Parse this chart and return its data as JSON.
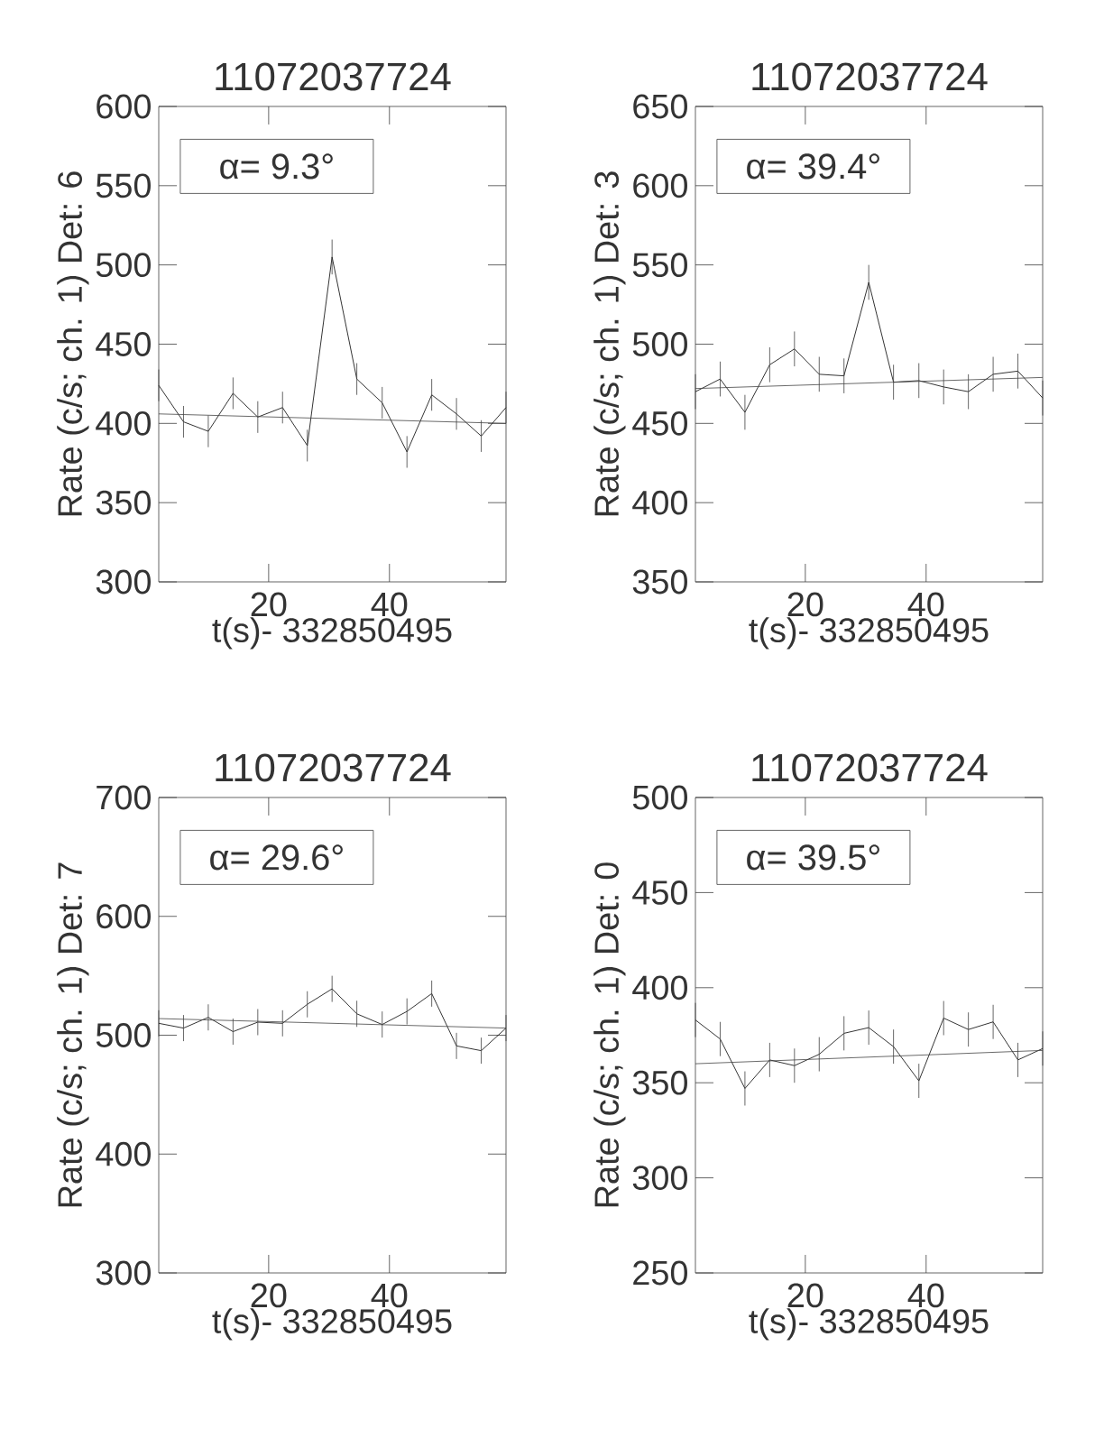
{
  "chart_data": [
    {
      "type": "line",
      "title": "11072037724",
      "xlabel": "t(s)- 332850495",
      "ylabel": "Rate (c/s; ch. 1) Det: 6",
      "annotations": [
        "α= 9.3°"
      ],
      "xlim": [
        1.8,
        59.3
      ],
      "ylim": [
        300,
        600
      ],
      "xticks": [
        20,
        40
      ],
      "yticks": [
        300,
        350,
        400,
        450,
        500,
        550,
        600
      ],
      "series": [
        {
          "color": "#000000",
          "x": [
            1.8,
            5.9,
            10.0,
            14.1,
            18.2,
            22.3,
            26.4,
            30.5,
            34.6,
            38.8,
            42.9,
            47.0,
            51.1,
            55.2,
            59.3
          ],
          "values": [
            424,
            401,
            395,
            419,
            404,
            410,
            386,
            505,
            428,
            413,
            382,
            418,
            406,
            392,
            410
          ],
          "errors": [
            10,
            10,
            10,
            10,
            10,
            10,
            10,
            11,
            10,
            10,
            10,
            10,
            10,
            10,
            10
          ]
        },
        {
          "type": "line",
          "color": "#444444",
          "x": [
            1.8,
            59.3
          ],
          "values": [
            406,
            400
          ]
        }
      ]
    },
    {
      "type": "line",
      "title": "11072037724",
      "xlabel": "t(s)- 332850495",
      "ylabel": "Rate (c/s; ch. 1) Det: 3",
      "annotations": [
        "α= 39.4°"
      ],
      "xlim": [
        1.8,
        59.3
      ],
      "ylim": [
        350,
        650
      ],
      "xticks": [
        20,
        40
      ],
      "yticks": [
        350,
        400,
        450,
        500,
        550,
        600,
        650
      ],
      "series": [
        {
          "color": "#000000",
          "x": [
            1.8,
            5.9,
            10.0,
            14.1,
            18.2,
            22.3,
            26.4,
            30.5,
            34.6,
            38.8,
            42.9,
            47.0,
            51.1,
            55.2,
            59.3
          ],
          "values": [
            470,
            478,
            457,
            487,
            497,
            481,
            480,
            539,
            476,
            477,
            473,
            470,
            481,
            483,
            466
          ],
          "errors": [
            11,
            11,
            11,
            11,
            11,
            11,
            11,
            11,
            11,
            11,
            11,
            11,
            11,
            11,
            11
          ]
        },
        {
          "type": "line",
          "color": "#444444",
          "x": [
            1.8,
            59.3
          ],
          "values": [
            472,
            479
          ]
        }
      ]
    },
    {
      "type": "line",
      "title": "11072037724",
      "xlabel": "t(s)- 332850495",
      "ylabel": "Rate (c/s; ch. 1) Det: 7",
      "annotations": [
        "α= 29.6°"
      ],
      "xlim": [
        1.8,
        59.3
      ],
      "ylim": [
        300,
        700
      ],
      "xticks": [
        20,
        40
      ],
      "yticks": [
        300,
        400,
        500,
        600,
        700
      ],
      "series": [
        {
          "color": "#000000",
          "x": [
            1.8,
            5.9,
            10.0,
            14.1,
            18.2,
            22.3,
            26.4,
            30.5,
            34.6,
            38.8,
            42.9,
            47.0,
            51.1,
            55.2,
            59.3
          ],
          "values": [
            510,
            506,
            515,
            503,
            511,
            510,
            526,
            539,
            518,
            509,
            520,
            535,
            491,
            487,
            506
          ],
          "errors": [
            11,
            11,
            11,
            11,
            11,
            11,
            11,
            11,
            11,
            11,
            11,
            11,
            11,
            11,
            11
          ]
        },
        {
          "type": "line",
          "color": "#444444",
          "x": [
            1.8,
            59.3
          ],
          "values": [
            514,
            506
          ]
        }
      ]
    },
    {
      "type": "line",
      "title": "11072037724",
      "xlabel": "t(s)- 332850495",
      "ylabel": "Rate (c/s; ch. 1) Det: 0",
      "annotations": [
        "α= 39.5°"
      ],
      "xlim": [
        1.8,
        59.3
      ],
      "ylim": [
        250,
        500
      ],
      "xticks": [
        20,
        40
      ],
      "yticks": [
        250,
        300,
        350,
        400,
        450,
        500
      ],
      "series": [
        {
          "color": "#000000",
          "x": [
            1.8,
            5.9,
            10.0,
            14.1,
            18.2,
            22.3,
            26.4,
            30.5,
            34.6,
            38.8,
            42.9,
            47.0,
            51.1,
            55.2,
            59.3
          ],
          "values": [
            383,
            373,
            347,
            362,
            359,
            365,
            376,
            379,
            369,
            351,
            384,
            378,
            382,
            362,
            368
          ],
          "errors": [
            9,
            9,
            9,
            9,
            9,
            9,
            9,
            9,
            9,
            9,
            9,
            9,
            9,
            9,
            9
          ]
        },
        {
          "type": "line",
          "color": "#444444",
          "x": [
            1.8,
            59.3
          ],
          "values": [
            360,
            367
          ]
        }
      ]
    }
  ]
}
